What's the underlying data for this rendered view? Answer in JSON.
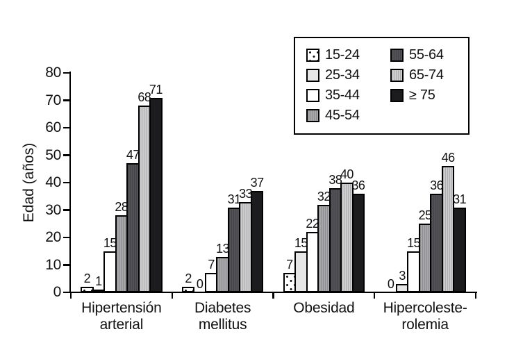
{
  "figure": {
    "background": "#ffffff",
    "axis_color": "#000000",
    "text_color": "#111111"
  },
  "chart_data": {
    "type": "bar",
    "title": "",
    "xlabel": "",
    "ylabel": "Edad (años)",
    "ylim": [
      0,
      80
    ],
    "yticks": [
      0,
      10,
      20,
      30,
      40,
      50,
      60,
      70,
      80
    ],
    "grid": false,
    "legend_position": "top-right",
    "legend_columns": [
      4,
      3
    ],
    "categories": [
      {
        "lines": [
          "Hipertensión",
          "arterial"
        ]
      },
      {
        "lines": [
          "Diabetes",
          "mellitus"
        ]
      },
      {
        "lines": [
          "Obesidad"
        ]
      },
      {
        "lines": [
          "Hipercoleste-",
          "rolemia"
        ]
      }
    ],
    "series": [
      {
        "name": "15-24",
        "pattern": "dots",
        "fill": "#ffffff",
        "values": [
          2,
          2,
          7,
          0
        ]
      },
      {
        "name": "25-34",
        "pattern": "solid",
        "fill": "#e6e6e6",
        "values": [
          1,
          0,
          15,
          3
        ]
      },
      {
        "name": "35-44",
        "pattern": "solid",
        "fill": "#ffffff",
        "values": [
          15,
          7,
          22,
          15
        ]
      },
      {
        "name": "45-54",
        "pattern": "vstripe",
        "fill": "#a7a7a9",
        "values": [
          28,
          13,
          32,
          25
        ]
      },
      {
        "name": "55-64",
        "pattern": "vstripe",
        "fill": "#515156",
        "values": [
          47,
          31,
          38,
          36
        ]
      },
      {
        "name": "65-74",
        "pattern": "vstripe",
        "fill": "#cdcdd0",
        "values": [
          68,
          33,
          40,
          46
        ]
      },
      {
        "name": "≥ 75",
        "pattern": "solid",
        "fill": "#1c1c1e",
        "values": [
          71,
          37,
          36,
          31
        ]
      }
    ]
  }
}
